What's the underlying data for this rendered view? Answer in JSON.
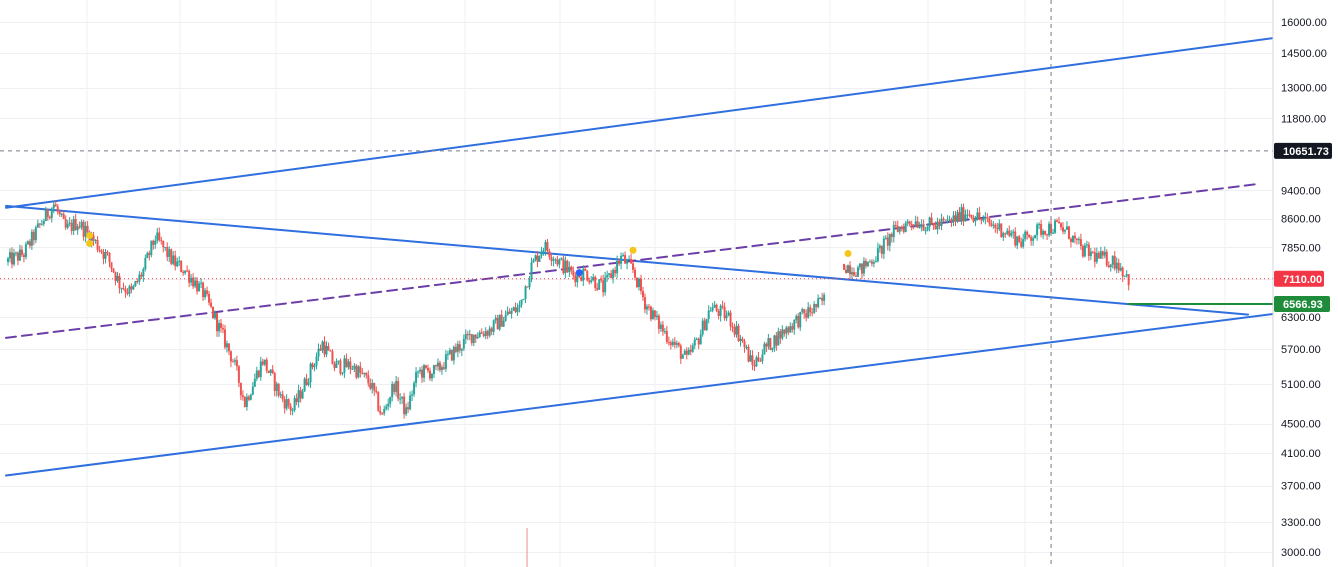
{
  "chart_data": {
    "type": "candlestick",
    "scale": "log",
    "grid": true,
    "y_ticks": [
      3000,
      3300,
      3700,
      4100,
      4500,
      5100,
      5700,
      6300,
      7110,
      7850,
      8600,
      9400,
      11800,
      13000,
      14500,
      16000
    ],
    "y_tick_labels": [
      "3000.00",
      "3300.00",
      "3700.00",
      "4100.00",
      "4500.00",
      "5100.00",
      "5700.00",
      "6300.00",
      "7110.00",
      "7850.00",
      "8600.00",
      "9400.00",
      "11800.00",
      "13000.00",
      "14500.00",
      "16000.00"
    ],
    "y_range": [
      2900,
      17500
    ],
    "price_lines": {
      "crosshair": {
        "value": 10651.73,
        "label": "10651.73",
        "color": "#131722"
      },
      "last_price": {
        "value": 7110.0,
        "label": "7110.00",
        "color": "#f23645"
      },
      "level": {
        "value": 6566.93,
        "label": "6566.93",
        "color": "#1e8c3a"
      }
    },
    "colors": {
      "up": "#26a69a",
      "down": "#ef5350",
      "trendline": "#2f6fdf",
      "dashed_trendline": "#6c3fa8",
      "marker_yellow": "#f5c518",
      "marker_blue": "#2962ff"
    },
    "price_path": [
      [
        0,
        7500
      ],
      [
        3,
        7700
      ],
      [
        6,
        8500
      ],
      [
        8,
        9000
      ],
      [
        10,
        8300
      ],
      [
        12,
        8500
      ],
      [
        14,
        8150
      ],
      [
        17,
        7600
      ],
      [
        19,
        7000
      ],
      [
        21,
        6800
      ],
      [
        23,
        7300
      ],
      [
        25,
        8100
      ],
      [
        28,
        7500
      ],
      [
        30,
        7300
      ],
      [
        33,
        6800
      ],
      [
        36,
        6000
      ],
      [
        38,
        5500
      ],
      [
        40,
        4800
      ],
      [
        43,
        5500
      ],
      [
        46,
        4900
      ],
      [
        48,
        4700
      ],
      [
        50,
        5100
      ],
      [
        53,
        5800
      ],
      [
        55,
        5400
      ],
      [
        58,
        5400
      ],
      [
        61,
        5100
      ],
      [
        63,
        4600
      ],
      [
        65,
        5100
      ],
      [
        67,
        4650
      ],
      [
        69,
        5300
      ],
      [
        72,
        5300
      ],
      [
        75,
        5650
      ],
      [
        78,
        5950
      ],
      [
        81,
        6050
      ],
      [
        84,
        6350
      ],
      [
        86,
        6500
      ],
      [
        88,
        7400
      ],
      [
        90,
        7900
      ],
      [
        93,
        7450
      ],
      [
        95,
        7200
      ],
      [
        97,
        7250
      ],
      [
        100,
        6900
      ],
      [
        103,
        7600
      ],
      [
        105,
        7300
      ],
      [
        107,
        6600
      ],
      [
        109,
        6200
      ],
      [
        111,
        5900
      ],
      [
        114,
        5500
      ],
      [
        116,
        5900
      ],
      [
        118,
        6500
      ],
      [
        121,
        6300
      ],
      [
        123,
        5900
      ],
      [
        125,
        5400
      ],
      [
        127,
        5700
      ],
      [
        130,
        6000
      ],
      [
        132,
        6200
      ],
      [
        135,
        6450
      ],
      [
        137,
        6650
      ],
      [
        140,
        7450
      ],
      [
        143,
        7300
      ],
      [
        146,
        7700
      ],
      [
        149,
        8300
      ],
      [
        152,
        8550
      ],
      [
        155,
        8400
      ],
      [
        158,
        8500
      ],
      [
        161,
        8800
      ],
      [
        164,
        8500
      ],
      [
        167,
        8300
      ],
      [
        170,
        8000
      ],
      [
        173,
        8300
      ],
      [
        176,
        8400
      ],
      [
        178,
        8200
      ],
      [
        180,
        7800
      ],
      [
        183,
        7600
      ],
      [
        186,
        7500
      ],
      [
        188,
        7110
      ]
    ],
    "price_gaps_after": [
      137
    ],
    "trendlines": [
      {
        "style": "solid",
        "color": "#2f6fdf",
        "from": [
          0,
          8900
        ],
        "to": [
          212,
          15200
        ]
      },
      {
        "style": "solid",
        "color": "#2f6fdf",
        "from": [
          0,
          8950
        ],
        "to": [
          208,
          6350
        ]
      },
      {
        "style": "solid",
        "color": "#2f6fdf",
        "from": [
          0,
          3820
        ],
        "to": [
          212,
          6360
        ]
      },
      {
        "style": "dashed",
        "color": "#6c3fa8",
        "from": [
          0,
          5900
        ],
        "to": [
          210,
          9600
        ]
      },
      {
        "style": "solid",
        "color": "#1e8c3a",
        "from": [
          188,
          6566.93
        ],
        "to": [
          212,
          6566.93
        ]
      }
    ],
    "markers": [
      {
        "x": 14,
        "y": 8150,
        "color": "#f5c518"
      },
      {
        "x": 14,
        "y": 7950,
        "color": "#f5c518"
      },
      {
        "x": 96,
        "y": 7250,
        "color": "#2962ff"
      },
      {
        "x": 105,
        "y": 7780,
        "color": "#f5c518"
      },
      {
        "x": 141,
        "y": 7700,
        "color": "#f5c518"
      }
    ],
    "crosshair_x": 175
  }
}
